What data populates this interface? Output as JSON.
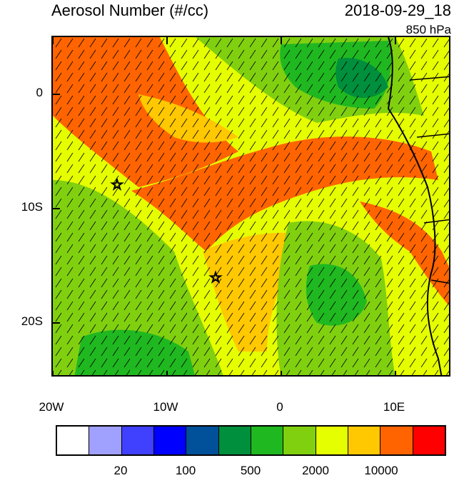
{
  "title_left": "Aerosol Number (#/cc)",
  "title_right": "2018-09-29_18",
  "pressure_level": "850 hPa",
  "y_tick_labels": [
    "0",
    "10S",
    "20S"
  ],
  "x_tick_labels": [
    "20W",
    "10W",
    "0",
    "10E"
  ],
  "colorbar": {
    "colors": [
      "#ffffff",
      "#a0a0ff",
      "#4040ff",
      "#0000ff",
      "#00509a",
      "#008f3c",
      "#20b820",
      "#80d010",
      "#e6ff00",
      "#ffc800",
      "#ff6400",
      "#ff0000"
    ],
    "labels": [
      "20",
      "100",
      "500",
      "2000",
      "10000"
    ]
  },
  "markers": [
    {
      "name": "star-marker-north",
      "lon": -14.2,
      "lat": -8.0
    },
    {
      "name": "star-marker-south",
      "lon": -5.6,
      "lat": -16.0
    }
  ]
}
